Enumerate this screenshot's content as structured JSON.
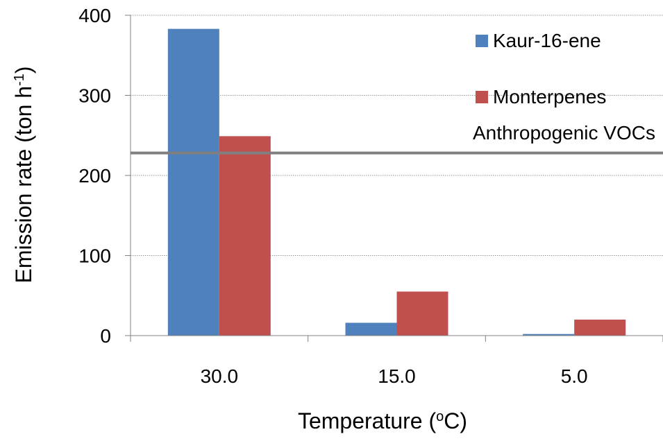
{
  "chart_data": {
    "type": "bar",
    "categories": [
      "30.0",
      "15.0",
      "5.0"
    ],
    "series": [
      {
        "name": "Kaur-16-ene",
        "values": [
          383,
          16,
          2
        ],
        "color": "#4f81bd"
      },
      {
        "name": "Monterpenes",
        "values": [
          249,
          55,
          20
        ],
        "color": "#c0504d"
      }
    ],
    "xlabel": "Temperature (",
    "xlabel_sup": "o",
    "xlabel_tail": "C)",
    "ylabel": "Emission rate (ton h",
    "ylabel_sup": "-1",
    "ylabel_tail": ")",
    "ylim": [
      0,
      400
    ],
    "yticks": [
      0,
      100,
      200,
      300,
      400
    ],
    "gridlines": true,
    "legend_position": "top-right",
    "reference_line": {
      "label": "Anthropogenic VOCs",
      "value": 228,
      "color": "#808080"
    }
  }
}
